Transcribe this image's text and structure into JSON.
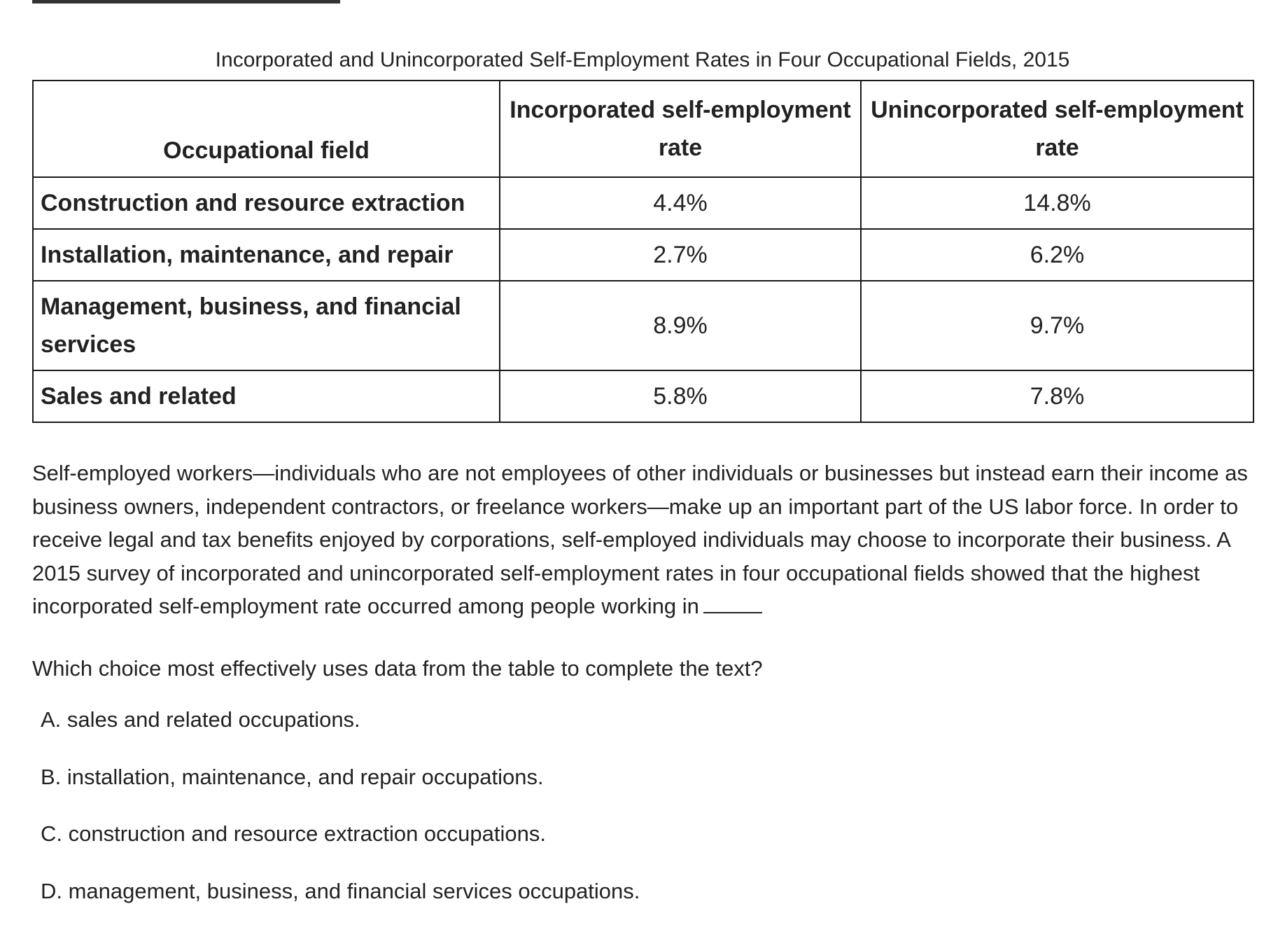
{
  "caption": "Incorporated and Unincorporated Self-Employment Rates in Four Occupational Fields, 2015",
  "table": {
    "headers": [
      "Occupational field",
      "Incorporated self-employment rate",
      "Unincorporated self-employment rate"
    ],
    "rows": [
      {
        "field": "Construction and resource extraction",
        "incorporated": "4.4%",
        "unincorporated": "14.8%"
      },
      {
        "field": "Installation, maintenance, and repair",
        "incorporated": "2.7%",
        "unincorporated": "6.2%"
      },
      {
        "field": "Management, business, and financial services",
        "incorporated": "8.9%",
        "unincorporated": "9.7%"
      },
      {
        "field": "Sales and related",
        "incorporated": "5.8%",
        "unincorporated": "7.8%"
      }
    ]
  },
  "passage": "Self-employed workers—individuals who are not employees of other individuals or businesses but instead earn their income as business owners, independent contractors, or freelance workers—make up an important part of the US labor force. In order to receive legal and tax benefits enjoyed by corporations, self-employed individuals may choose to incorporate their business. A 2015 survey of incorporated and unincorporated self-employment rates in four occupational fields showed that the highest incorporated self-employment rate occurred among people working in",
  "question": "Which choice most effectively uses data from the table to complete the text?",
  "choices": [
    "A. sales and related occupations.",
    "B. installation, maintenance, and repair occupations.",
    "C. construction and resource extraction occupations.",
    "D. management, business, and financial services occupations."
  ]
}
